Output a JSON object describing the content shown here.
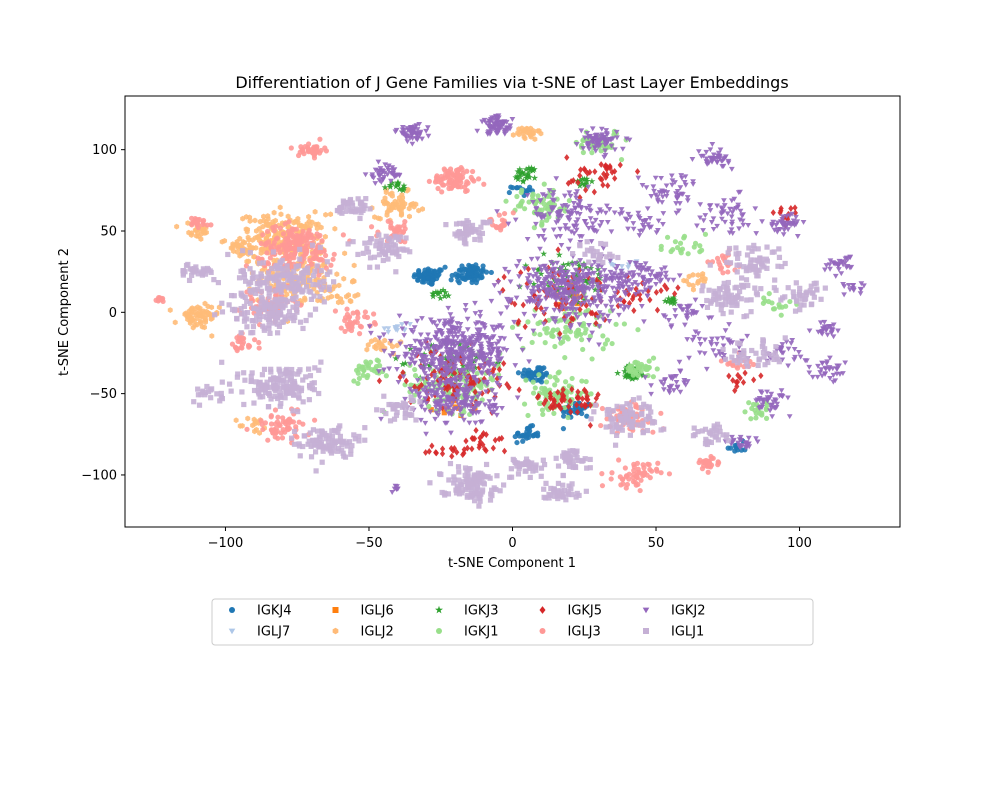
{
  "chart_data": {
    "type": "scatter",
    "title": "Differentiation of J Gene Families via t-SNE of Last Layer Embeddings",
    "xlabel": "t-SNE Component 1",
    "ylabel": "t-SNE Component 2",
    "xlim": [
      -135,
      135
    ],
    "ylim": [
      -132,
      133
    ],
    "xticks": [
      -100,
      -50,
      0,
      50,
      100
    ],
    "yticks": [
      -100,
      -50,
      0,
      50,
      100
    ],
    "grid": false,
    "legend_placement": "below plot, 6 columns",
    "series": [
      {
        "name": "IGKJ4",
        "color": "#1f77b4",
        "marker": "circle",
        "clusters": [
          {
            "x": -29,
            "y": 22,
            "r": 5,
            "n": 60
          },
          {
            "x": -15,
            "y": 24,
            "r": 6,
            "n": 70
          },
          {
            "x": 8,
            "y": -38,
            "r": 5,
            "n": 40
          },
          {
            "x": 22,
            "y": -60,
            "r": 5,
            "n": 40
          },
          {
            "x": 5,
            "y": -75,
            "r": 4,
            "n": 30
          },
          {
            "x": 3,
            "y": 75,
            "r": 3,
            "n": 15
          },
          {
            "x": 78,
            "y": -83,
            "r": 3,
            "n": 12
          }
        ]
      },
      {
        "name": "IGLJ7",
        "color": "#aec7e8",
        "marker": "triangle-down",
        "clusters": [
          {
            "x": -40,
            "y": -10,
            "r": 5,
            "n": 12
          },
          {
            "x": 40,
            "y": 30,
            "r": 5,
            "n": 10
          }
        ]
      },
      {
        "name": "IGLJ6",
        "color": "#ff7f0e",
        "marker": "square",
        "clusters": [
          {
            "x": -20,
            "y": -60,
            "r": 6,
            "n": 10
          },
          {
            "x": 20,
            "y": 10,
            "r": 6,
            "n": 10
          }
        ]
      },
      {
        "name": "IGLJ2",
        "color": "#ffbb78",
        "marker": "hexagon",
        "clusters": [
          {
            "x": -80,
            "y": 45,
            "r": 14,
            "n": 230
          },
          {
            "x": -75,
            "y": 20,
            "r": 12,
            "n": 130
          },
          {
            "x": -110,
            "y": -3,
            "r": 7,
            "n": 60
          },
          {
            "x": -40,
            "y": 66,
            "r": 7,
            "n": 60
          },
          {
            "x": 5,
            "y": 110,
            "r": 4,
            "n": 30
          },
          {
            "x": -110,
            "y": 50,
            "r": 5,
            "n": 25
          },
          {
            "x": -95,
            "y": 40,
            "r": 6,
            "n": 25
          },
          {
            "x": -45,
            "y": -20,
            "r": 5,
            "n": 20
          },
          {
            "x": -60,
            "y": 10,
            "r": 5,
            "n": 15
          },
          {
            "x": 65,
            "y": 20,
            "r": 5,
            "n": 15
          },
          {
            "x": -90,
            "y": -70,
            "r": 5,
            "n": 15
          }
        ]
      },
      {
        "name": "IGKJ3",
        "color": "#2ca02c",
        "marker": "star",
        "clusters": [
          {
            "x": -20,
            "y": -30,
            "r": 12,
            "n": 60
          },
          {
            "x": 20,
            "y": 20,
            "r": 14,
            "n": 60
          },
          {
            "x": 42,
            "y": -37,
            "r": 4,
            "n": 35
          },
          {
            "x": -40,
            "y": 77,
            "r": 3,
            "n": 15
          },
          {
            "x": 5,
            "y": 85,
            "r": 4,
            "n": 25
          },
          {
            "x": 25,
            "y": 80,
            "r": 3,
            "n": 12
          },
          {
            "x": 55,
            "y": 8,
            "r": 3,
            "n": 10
          },
          {
            "x": -25,
            "y": 12,
            "r": 3,
            "n": 12
          }
        ]
      },
      {
        "name": "IGKJ1",
        "color": "#98df8a",
        "marker": "circle",
        "clusters": [
          {
            "x": -20,
            "y": -45,
            "r": 14,
            "n": 130
          },
          {
            "x": 15,
            "y": -50,
            "r": 10,
            "n": 80
          },
          {
            "x": 10,
            "y": 65,
            "r": 10,
            "n": 60
          },
          {
            "x": 30,
            "y": 105,
            "r": 7,
            "n": 40
          },
          {
            "x": 20,
            "y": -10,
            "r": 15,
            "n": 80
          },
          {
            "x": 45,
            "y": -35,
            "r": 5,
            "n": 35
          },
          {
            "x": -50,
            "y": -35,
            "r": 6,
            "n": 30
          },
          {
            "x": 60,
            "y": 40,
            "r": 8,
            "n": 20
          },
          {
            "x": 92,
            "y": 5,
            "r": 5,
            "n": 15
          },
          {
            "x": 85,
            "y": -60,
            "r": 5,
            "n": 20
          }
        ]
      },
      {
        "name": "IGKJ5",
        "color": "#d62728",
        "marker": "diamond",
        "clusters": [
          {
            "x": -20,
            "y": -40,
            "r": 16,
            "n": 90
          },
          {
            "x": 15,
            "y": 10,
            "r": 18,
            "n": 70
          },
          {
            "x": 20,
            "y": -55,
            "r": 10,
            "n": 50
          },
          {
            "x": 30,
            "y": 85,
            "r": 10,
            "n": 35
          },
          {
            "x": 45,
            "y": 10,
            "r": 8,
            "n": 25
          },
          {
            "x": -10,
            "y": -80,
            "r": 8,
            "n": 25
          },
          {
            "x": -25,
            "y": -85,
            "r": 6,
            "n": 12
          },
          {
            "x": 95,
            "y": 60,
            "r": 4,
            "n": 12
          },
          {
            "x": 80,
            "y": -40,
            "r": 6,
            "n": 12
          }
        ]
      },
      {
        "name": "IGLJ3",
        "color": "#ff9896",
        "marker": "circle",
        "clusters": [
          {
            "x": -75,
            "y": 40,
            "r": 12,
            "n": 180
          },
          {
            "x": -20,
            "y": 82,
            "r": 7,
            "n": 90
          },
          {
            "x": -70,
            "y": 100,
            "r": 4,
            "n": 35
          },
          {
            "x": -85,
            "y": 5,
            "r": 9,
            "n": 60
          },
          {
            "x": 40,
            "y": -65,
            "r": 9,
            "n": 70
          },
          {
            "x": 43,
            "y": -100,
            "r": 7,
            "n": 55
          },
          {
            "x": 68,
            "y": -93,
            "r": 4,
            "n": 25
          },
          {
            "x": -80,
            "y": -70,
            "r": 9,
            "n": 60
          },
          {
            "x": -55,
            "y": -5,
            "r": 6,
            "n": 35
          },
          {
            "x": -40,
            "y": 50,
            "r": 6,
            "n": 30
          },
          {
            "x": -123,
            "y": 8,
            "r": 2,
            "n": 12
          },
          {
            "x": -110,
            "y": 55,
            "r": 4,
            "n": 20
          },
          {
            "x": -95,
            "y": -20,
            "r": 5,
            "n": 25
          },
          {
            "x": 80,
            "y": -30,
            "r": 6,
            "n": 20
          },
          {
            "x": -5,
            "y": 55,
            "r": 5,
            "n": 20
          },
          {
            "x": 75,
            "y": 30,
            "r": 6,
            "n": 20
          }
        ]
      },
      {
        "name": "IGKJ2",
        "color": "#9467bd",
        "marker": "triangle-down",
        "clusters": [
          {
            "x": -20,
            "y": -25,
            "r": 18,
            "n": 450
          },
          {
            "x": 20,
            "y": 15,
            "r": 18,
            "n": 350
          },
          {
            "x": -20,
            "y": -55,
            "r": 13,
            "n": 170
          },
          {
            "x": -5,
            "y": 115,
            "r": 5,
            "n": 70
          },
          {
            "x": -35,
            "y": 110,
            "r": 5,
            "n": 50
          },
          {
            "x": -45,
            "y": 85,
            "r": 5,
            "n": 40
          },
          {
            "x": 30,
            "y": 105,
            "r": 6,
            "n": 70
          },
          {
            "x": 20,
            "y": 60,
            "r": 15,
            "n": 120
          },
          {
            "x": 45,
            "y": 20,
            "r": 10,
            "n": 80
          },
          {
            "x": 55,
            "y": 75,
            "r": 10,
            "n": 50
          },
          {
            "x": 70,
            "y": 95,
            "r": 5,
            "n": 40
          },
          {
            "x": 75,
            "y": 60,
            "r": 10,
            "n": 50
          },
          {
            "x": 95,
            "y": 55,
            "r": 5,
            "n": 40
          },
          {
            "x": 115,
            "y": 30,
            "r": 5,
            "n": 30
          },
          {
            "x": 110,
            "y": -10,
            "r": 5,
            "n": 25
          },
          {
            "x": 110,
            "y": -35,
            "r": 5,
            "n": 30
          },
          {
            "x": 95,
            "y": -25,
            "r": 8,
            "n": 30
          },
          {
            "x": 90,
            "y": -55,
            "r": 6,
            "n": 40
          },
          {
            "x": 80,
            "y": -80,
            "r": 4,
            "n": 25
          },
          {
            "x": 70,
            "y": -20,
            "r": 10,
            "n": 40
          },
          {
            "x": 60,
            "y": 0,
            "r": 8,
            "n": 30
          },
          {
            "x": 55,
            "y": -45,
            "r": 8,
            "n": 30
          },
          {
            "x": 120,
            "y": 15,
            "r": 4,
            "n": 15
          },
          {
            "x": -40,
            "y": -108,
            "r": 2,
            "n": 8
          },
          {
            "x": 45,
            "y": 55,
            "r": 8,
            "n": 30
          }
        ]
      },
      {
        "name": "IGLJ1",
        "color": "#c5b0d5",
        "marker": "square",
        "clusters": [
          {
            "x": -80,
            "y": 20,
            "r": 14,
            "n": 150
          },
          {
            "x": -80,
            "y": -45,
            "r": 12,
            "n": 150
          },
          {
            "x": -85,
            "y": 0,
            "r": 12,
            "n": 130
          },
          {
            "x": -65,
            "y": -80,
            "r": 9,
            "n": 90
          },
          {
            "x": -15,
            "y": -105,
            "r": 9,
            "n": 110
          },
          {
            "x": 17,
            "y": -110,
            "r": 6,
            "n": 40
          },
          {
            "x": 40,
            "y": -65,
            "r": 10,
            "n": 80
          },
          {
            "x": 20,
            "y": -90,
            "r": 6,
            "n": 40
          },
          {
            "x": 5,
            "y": -95,
            "r": 6,
            "n": 40
          },
          {
            "x": -45,
            "y": 40,
            "r": 8,
            "n": 60
          },
          {
            "x": -15,
            "y": 50,
            "r": 6,
            "n": 50
          },
          {
            "x": 75,
            "y": 10,
            "r": 10,
            "n": 70
          },
          {
            "x": 85,
            "y": 30,
            "r": 10,
            "n": 60
          },
          {
            "x": 70,
            "y": -75,
            "r": 6,
            "n": 30
          },
          {
            "x": 100,
            "y": 10,
            "r": 8,
            "n": 40
          },
          {
            "x": -110,
            "y": 25,
            "r": 5,
            "n": 30
          },
          {
            "x": -40,
            "y": -60,
            "r": 6,
            "n": 35
          },
          {
            "x": 85,
            "y": -25,
            "r": 10,
            "n": 40
          },
          {
            "x": -55,
            "y": 65,
            "r": 6,
            "n": 40
          },
          {
            "x": 30,
            "y": 35,
            "r": 8,
            "n": 25
          },
          {
            "x": -105,
            "y": -50,
            "r": 5,
            "n": 20
          }
        ]
      }
    ]
  }
}
